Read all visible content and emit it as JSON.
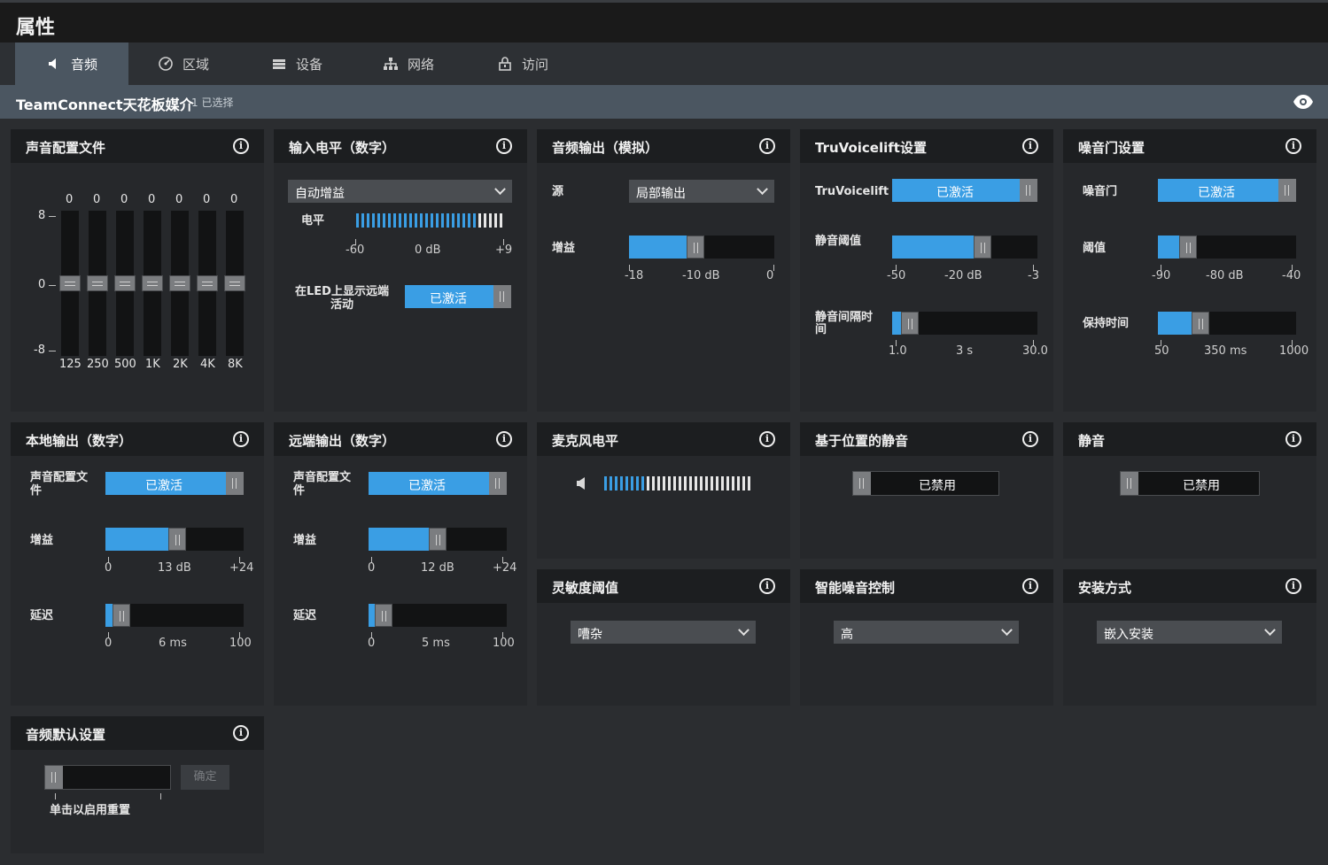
{
  "window": {
    "title": "属性"
  },
  "tabs": [
    {
      "label": "音频",
      "icon": "speaker-icon",
      "active": true
    },
    {
      "label": "区域",
      "icon": "zone-icon",
      "active": false
    },
    {
      "label": "设备",
      "icon": "device-icon",
      "active": false
    },
    {
      "label": "网络",
      "icon": "network-icon",
      "active": false
    },
    {
      "label": "访问",
      "icon": "lock-icon",
      "active": false
    }
  ],
  "device": {
    "name": "TeamConnect天花板媒介",
    "selected": "1 已选择"
  },
  "panels": {
    "profile": {
      "title": "声音配置文件",
      "axis": [
        "8",
        "0",
        "-8"
      ],
      "bands": [
        {
          "freq": "125",
          "value": "0"
        },
        {
          "freq": "250",
          "value": "0"
        },
        {
          "freq": "500",
          "value": "0"
        },
        {
          "freq": "1K",
          "value": "0"
        },
        {
          "freq": "2K",
          "value": "0"
        },
        {
          "freq": "4K",
          "value": "0"
        },
        {
          "freq": "8K",
          "value": "0"
        }
      ]
    },
    "input_level": {
      "title": "输入电平（数字）",
      "select": "自动增益",
      "meter_label": "电平",
      "ticks": [
        "-60",
        "0 dB",
        "+9"
      ],
      "led_label": "在LED上显示远端活动",
      "led_toggle": "已激活"
    },
    "audio_out": {
      "title": "音频输出（模拟）",
      "source_label": "源",
      "source_value": "局部输出",
      "gain_label": "增益",
      "gain_fraction": 0.45,
      "ticks": [
        "-18",
        "-10 dB",
        "0"
      ]
    },
    "truvoicelift": {
      "title": "TruVoicelift设置",
      "tv_label": "TruVoicelift",
      "tv_toggle": "已激活",
      "thresh_label": "静音阈值",
      "thresh_fraction": 0.64,
      "thresh_ticks": [
        "-50",
        "-20 dB",
        "-3"
      ],
      "interval_label": "静音间隔时间",
      "interval_fraction": 0.07,
      "interval_ticks": [
        "1.0",
        "3 s",
        "30.0"
      ]
    },
    "noise_gate": {
      "title": "噪音门设置",
      "gate_label": "噪音门",
      "gate_toggle": "已激活",
      "thresh_label": "阈值",
      "thresh_fraction": 0.18,
      "thresh_ticks": [
        "-90",
        "-80 dB",
        "-40"
      ],
      "hold_label": "保持时间",
      "hold_fraction": 0.28,
      "hold_ticks": [
        "50",
        "350 ms",
        "1000"
      ]
    },
    "local_out": {
      "title": "本地输出（数字）",
      "profile_label": "声音配置文件",
      "profile_toggle": "已激活",
      "gain_label": "增益",
      "gain_fraction": 0.52,
      "gain_ticks": [
        "0",
        "13 dB",
        "+24"
      ],
      "delay_label": "延迟",
      "delay_fraction": 0.06,
      "delay_ticks": [
        "0",
        "6 ms",
        "100"
      ]
    },
    "far_out": {
      "title": "远端输出（数字）",
      "profile_label": "声音配置文件",
      "profile_toggle": "已激活",
      "gain_label": "增益",
      "gain_fraction": 0.5,
      "gain_ticks": [
        "0",
        "12 dB",
        "+24"
      ],
      "delay_label": "延迟",
      "delay_fraction": 0.05,
      "delay_ticks": [
        "0",
        "5 ms",
        "100"
      ]
    },
    "mic_level": {
      "title": "麦克风电平"
    },
    "position_mute": {
      "title": "基于位置的静音",
      "toggle": "已禁用"
    },
    "mute": {
      "title": "静音",
      "toggle": "已禁用"
    },
    "sensitivity": {
      "title": "灵敏度阈值",
      "select": "嘈杂"
    },
    "noise_control": {
      "title": "智能噪音控制",
      "select": "高"
    },
    "mounting": {
      "title": "安装方式",
      "select": "嵌入安装"
    },
    "defaults": {
      "title": "音频默认设置",
      "confirm": "确定",
      "hint": "单击以启用重置"
    }
  },
  "colors": {
    "accent": "#3a9ee4",
    "panel": "#26282b",
    "header": "#1c1e20"
  }
}
